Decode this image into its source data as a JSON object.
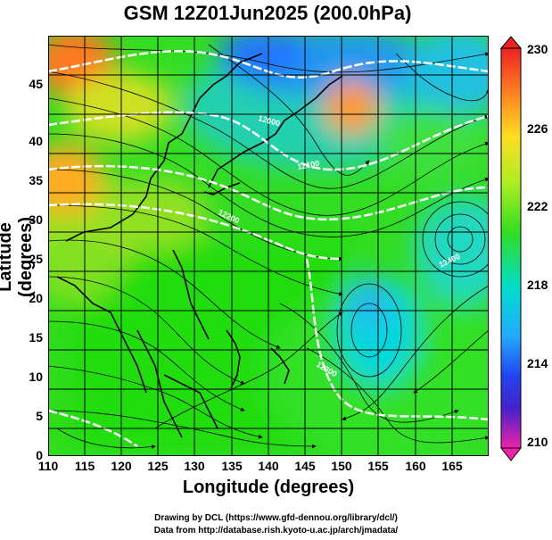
{
  "title": "GSM 12Z01Jun2025 (200.0hPa)",
  "xlabel": "Longitude (degrees)",
  "ylabel": "Latitude  (degrees)",
  "x_ticks": [
    "110",
    "115",
    "120",
    "125",
    "130",
    "135",
    "140",
    "145",
    "150",
    "155",
    "160",
    "165"
  ],
  "y_ticks": [
    "0",
    "5",
    "10",
    "15",
    "20",
    "25",
    "30",
    "35",
    "40",
    "45"
  ],
  "colorbar_ticks": [
    "230",
    "226",
    "222",
    "218",
    "214",
    "210"
  ],
  "contour_labels": [
    "12000",
    "12100",
    "12200",
    "12300",
    "12400"
  ],
  "credits": {
    "line1": "Drawing by DCL (https://www.gfd-dennou.org/library/dcl/)",
    "line2": "Data from http://database.rish.kyoto-u.ac.jp/arch/jmadata/"
  },
  "colors": {
    "green": "#22dd22",
    "cyan": "#00d8d8",
    "blue": "#2266ff",
    "orange": "#ff9922",
    "red": "#ee3322"
  },
  "chart_data": {
    "type": "heatmap",
    "title": "GSM 12Z01Jun2025 (200.0hPa)",
    "xlabel": "Longitude (degrees)",
    "ylabel": "Latitude  (degrees)",
    "xlim": [
      110,
      170
    ],
    "ylim": [
      0,
      50
    ],
    "grid": true,
    "colorbar": {
      "range": [
        210,
        230
      ],
      "ticks": [
        230,
        226,
        222,
        218,
        214,
        210
      ]
    },
    "features": [
      "coastlines",
      "streamlines",
      "geopotential height contours"
    ]
  }
}
